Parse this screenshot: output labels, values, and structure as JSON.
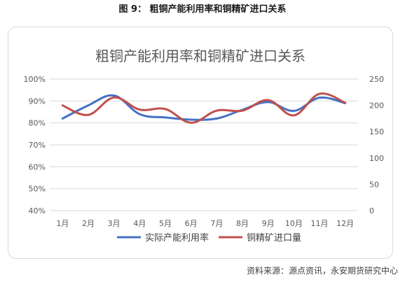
{
  "figure": {
    "caption": "图 9：   粗铜产能利用率和铜精矿进口关系",
    "source": "资料来源：源点资讯，永安期货研究中心"
  },
  "chart_data": {
    "type": "line",
    "title": "粗铜产能利用率和铜精矿进口关系",
    "categories": [
      "1月",
      "2月",
      "3月",
      "4月",
      "5月",
      "6月",
      "7月",
      "8月",
      "9月",
      "10月",
      "11月",
      "12月"
    ],
    "y_left": {
      "min": 40,
      "max": 100,
      "step": 10,
      "ticks": [
        "40%",
        "50%",
        "60%",
        "70%",
        "80%",
        "90%",
        "100%"
      ]
    },
    "y_right": {
      "min": 0,
      "max": 250,
      "step": 50,
      "ticks": [
        "0",
        "50",
        "100",
        "150",
        "200",
        "250"
      ]
    },
    "grid": true,
    "legend_position": "bottom",
    "series": [
      {
        "name": "实际产能利用率",
        "axis": "left",
        "color": "#4472C4",
        "values": [
          82,
          88,
          92.5,
          84,
          82.5,
          81.5,
          82,
          86,
          89.5,
          85.5,
          91.5,
          89
        ]
      },
      {
        "name": "铜精矿进口量",
        "axis": "right",
        "color": "#C0504D",
        "values": [
          200,
          182,
          215,
          192,
          193,
          167,
          190,
          190,
          210,
          181,
          222,
          205
        ]
      }
    ]
  }
}
